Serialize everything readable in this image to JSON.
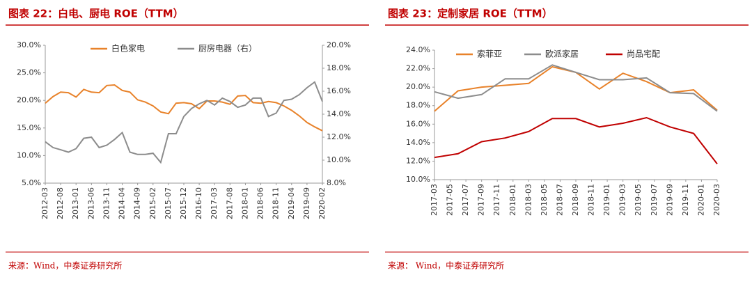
{
  "chart_data": [
    {
      "type": "line",
      "title": "图表 22：白电、厨电 ROE（TTM）",
      "source": "来源：Wind，中泰证券研究所",
      "categories": [
        "2012-03",
        null,
        "2012-08",
        null,
        "2013-01",
        null,
        "2013-06",
        null,
        "2013-11",
        null,
        "2014-04",
        null,
        "2014-09",
        null,
        "2015-02",
        null,
        "2015-07",
        null,
        "2015-12",
        null,
        "2016-10",
        null,
        "2017-03",
        null,
        "2017-08",
        null,
        "2018-01",
        null,
        "2018-06",
        null,
        "2018-11",
        null,
        "2019-04",
        null,
        "2019-09",
        null,
        "2020-02"
      ],
      "series": [
        {
          "name": "白色家电",
          "color": "#e8822a",
          "values": [
            19.5,
            20.7,
            21.5,
            21.4,
            20.6,
            22.0,
            21.5,
            21.4,
            22.7,
            22.8,
            21.8,
            21.5,
            20.1,
            19.7,
            19.0,
            17.9,
            17.6,
            19.5,
            19.6,
            19.4,
            18.5,
            19.9,
            19.9,
            19.7,
            19.3,
            20.8,
            20.9,
            19.6,
            19.5,
            19.8,
            19.6,
            19.0,
            18.2,
            17.2,
            16.0,
            15.2,
            14.5
          ]
        },
        {
          "name": "厨房电器（右）",
          "color": "#8c8c8c",
          "axis": "y2",
          "values": [
            11.6,
            11.1,
            10.9,
            10.7,
            11.0,
            11.9,
            12.0,
            11.1,
            11.3,
            11.8,
            12.4,
            10.7,
            10.5,
            10.5,
            10.6,
            9.8,
            12.3,
            12.3,
            13.8,
            14.5,
            14.9,
            15.2,
            14.8,
            15.4,
            15.1,
            14.6,
            14.8,
            15.4,
            15.4,
            13.8,
            14.1,
            15.2,
            15.3,
            15.7,
            16.3,
            16.8,
            15.1
          ]
        }
      ],
      "ylim": [
        5,
        30
      ],
      "yticks": [
        {
          "value": 5,
          "label": "5.0%"
        },
        {
          "value": 10,
          "label": "10.0%"
        },
        {
          "value": 15,
          "label": "15.0%"
        },
        {
          "value": 20,
          "label": "20.0%"
        },
        {
          "value": 25,
          "label": "25.0%"
        },
        {
          "value": 30,
          "label": "30.0%"
        }
      ],
      "y2lim": [
        8,
        20
      ],
      "y2ticks": [
        {
          "value": 8,
          "label": "8.0%"
        },
        {
          "value": 10,
          "label": "10.0%"
        },
        {
          "value": 12,
          "label": "12.0%"
        },
        {
          "value": 14,
          "label": "14.0%"
        },
        {
          "value": 16,
          "label": "16.0%"
        },
        {
          "value": 18,
          "label": "18.0%"
        },
        {
          "value": 20,
          "label": "20.0%"
        }
      ]
    },
    {
      "type": "line",
      "title": "图表 23：定制家居 ROE（TTM）",
      "source": "来源：  Wind，中泰证券研究所",
      "x": [
        "2017-03",
        "2017-06",
        "2017-09",
        "2017-12",
        "2018-03",
        "2018-06",
        "2018-09",
        "2018-12",
        "2019-03",
        "2019-06",
        "2019-09",
        "2019-12",
        "2020-03"
      ],
      "xticks": [
        "2017-03",
        "2017-05",
        "2017-07",
        "2017-09",
        "2017-11",
        "2018-01",
        "2018-03",
        "2018-05",
        "2018-07",
        "2018-09",
        "2018-11",
        "2019-01",
        "2019-03",
        "2019-05",
        "2019-07",
        "2019-09",
        "2019-11",
        "2020-01",
        "2020-03"
      ],
      "series": [
        {
          "name": "索菲亚",
          "color": "#e8822a",
          "values": [
            17.4,
            19.6,
            20.0,
            20.2,
            20.4,
            22.2,
            21.6,
            19.8,
            21.5,
            20.6,
            19.4,
            19.7,
            17.5
          ]
        },
        {
          "name": "欧派家居",
          "color": "#8c8c8c",
          "values": [
            19.5,
            18.8,
            19.2,
            20.9,
            20.9,
            22.4,
            21.6,
            20.8,
            20.8,
            21.0,
            19.4,
            19.3,
            17.4
          ]
        },
        {
          "name": "尚品宅配",
          "color": "#c00000",
          "values": [
            12.4,
            12.8,
            14.1,
            14.5,
            15.2,
            16.6,
            16.6,
            15.7,
            16.1,
            16.7,
            15.7,
            15.0,
            11.7
          ]
        }
      ],
      "ylim": [
        10,
        24
      ],
      "yticks": [
        {
          "value": 10,
          "label": "10.0%"
        },
        {
          "value": 12,
          "label": "12.0%"
        },
        {
          "value": 14,
          "label": "14.0%"
        },
        {
          "value": 16,
          "label": "16.0%"
        },
        {
          "value": 18,
          "label": "18.0%"
        },
        {
          "value": 20,
          "label": "20.0%"
        },
        {
          "value": 22,
          "label": "22.0%"
        },
        {
          "value": 24,
          "label": "24.0%"
        }
      ]
    }
  ]
}
